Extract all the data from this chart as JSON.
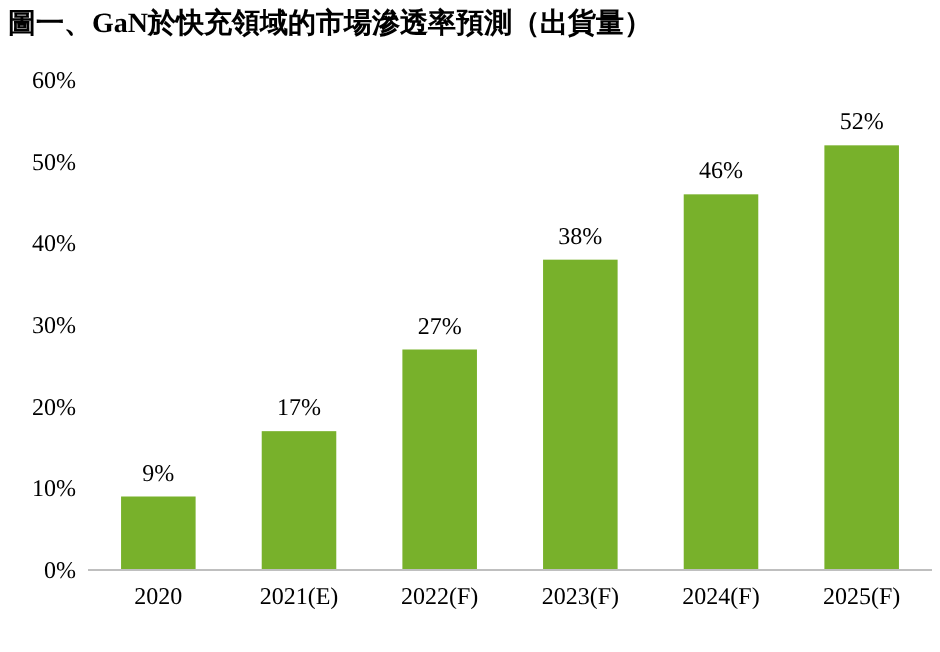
{
  "chart_data": {
    "type": "bar",
    "title": "圖一、GaN於快充領域的市場滲透率預測（出貨量）",
    "categories": [
      "2020",
      "2021(E)",
      "2022(F)",
      "2023(F)",
      "2024(F)",
      "2025(F)"
    ],
    "values": [
      9,
      17,
      27,
      38,
      46,
      52
    ],
    "value_labels": [
      "9%",
      "17%",
      "27%",
      "38%",
      "46%",
      "52%"
    ],
    "color": "#78b12b",
    "ylim": [
      0,
      60
    ],
    "yticks": [
      {
        "value": 0,
        "label": "0%"
      },
      {
        "value": 10,
        "label": "10%"
      },
      {
        "value": 20,
        "label": "20%"
      },
      {
        "value": 30,
        "label": "30%"
      },
      {
        "value": 40,
        "label": "40%"
      },
      {
        "value": 50,
        "label": "50%"
      },
      {
        "value": 60,
        "label": "60%"
      }
    ]
  }
}
